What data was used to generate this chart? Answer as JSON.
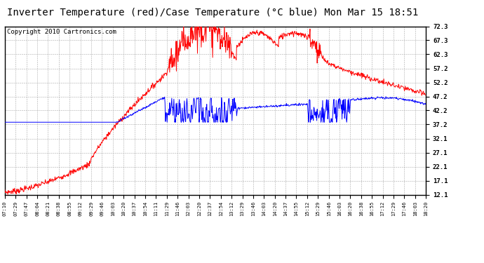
{
  "title": "Inverter Temperature (red)/Case Temperature (°C blue) Mon Mar 15 18:51",
  "copyright": "Copyright 2010 Cartronics.com",
  "y_ticks": [
    12.1,
    17.1,
    22.1,
    27.1,
    32.1,
    37.2,
    42.2,
    47.2,
    52.2,
    57.2,
    62.3,
    67.3,
    72.3
  ],
  "ylim": [
    12.1,
    72.3
  ],
  "x_labels": [
    "07:10",
    "07:29",
    "07:47",
    "08:04",
    "08:21",
    "08:38",
    "08:55",
    "09:12",
    "09:29",
    "09:46",
    "10:03",
    "10:20",
    "10:37",
    "10:54",
    "11:11",
    "11:29",
    "11:46",
    "12:03",
    "12:20",
    "12:37",
    "12:54",
    "13:12",
    "13:29",
    "13:46",
    "14:03",
    "14:20",
    "14:37",
    "14:55",
    "15:12",
    "15:29",
    "15:46",
    "16:03",
    "16:20",
    "16:38",
    "16:55",
    "17:12",
    "17:29",
    "17:46",
    "18:03",
    "18:20"
  ],
  "red_color": "#ff0000",
  "blue_color": "#0000ff",
  "bg_color": "#ffffff",
  "grid_color": "#aaaaaa",
  "title_fontsize": 10,
  "copyright_fontsize": 6.5
}
